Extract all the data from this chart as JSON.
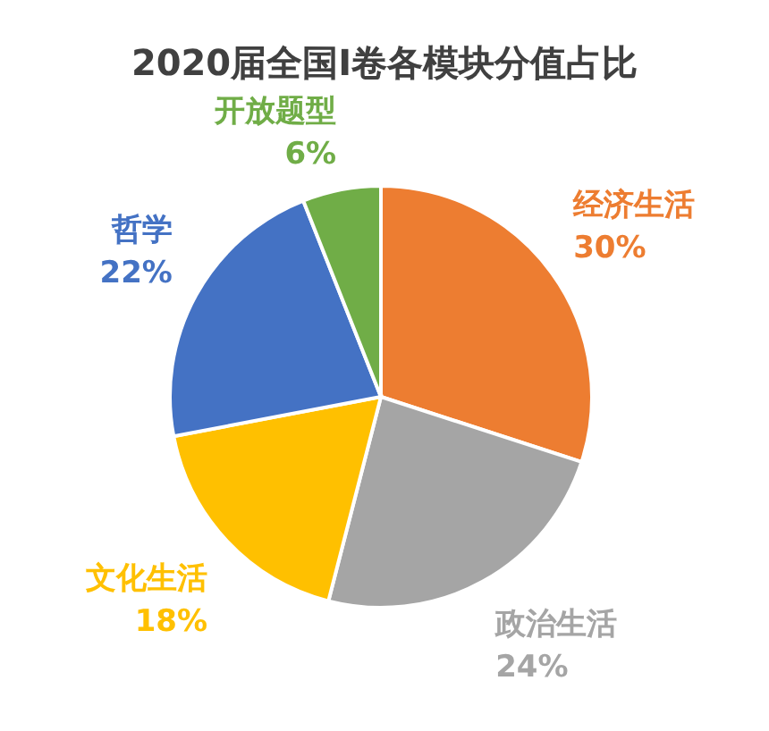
{
  "chart_data": {
    "type": "pie",
    "title": "2020届全国I卷各模块分值占比",
    "categories": [
      "经济生活",
      "政治生活",
      "文化生活",
      "哲学",
      "开放题型"
    ],
    "values": [
      30,
      24,
      18,
      22,
      6
    ],
    "value_labels": [
      "30%",
      "24%",
      "18%",
      "22%",
      "6%"
    ],
    "colors": [
      "#ed7d31",
      "#a5a5a5",
      "#ffc000",
      "#4472c4",
      "#70ad47"
    ]
  }
}
